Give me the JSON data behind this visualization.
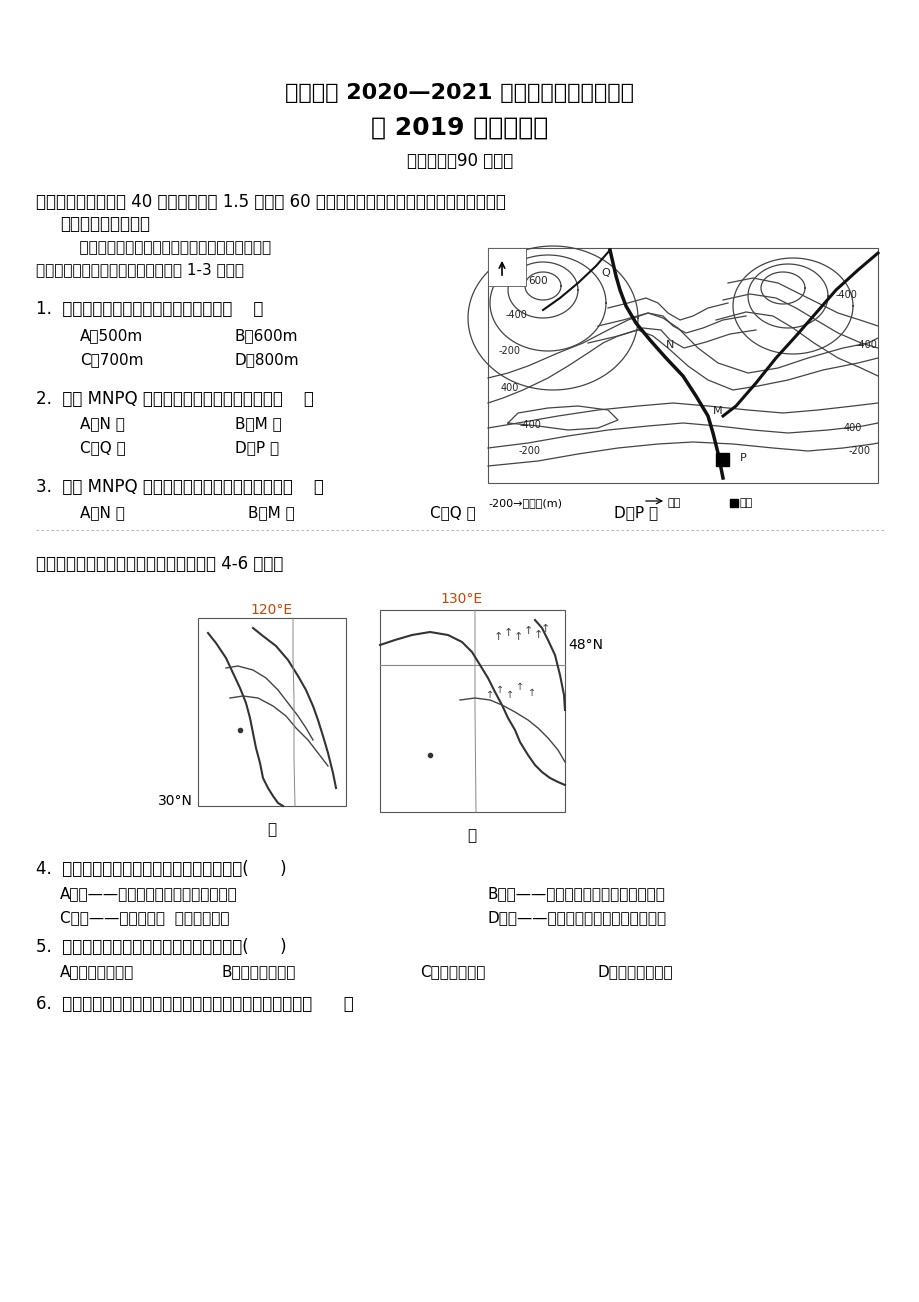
{
  "bg_color": "#ffffff",
  "title1": "南充高中 2020—2021 学年度上学期期中考试",
  "title2": "高 2019 级地理试题",
  "subtitle": "考试时间：90 分钟；",
  "section1": "一、选择题（本题共 40 小题，每小题 1.5 分，共 60 分。在每小题给出的四个选项中，只有一项",
  "section1b": "是符合题目要求的）",
  "intro_text": "    某学校地理兴趣小组开展了一次家乡地理考察活",
  "intro_text2": "动并绘制了等高线地形图。读图完成 1-3 小题。",
  "q1": "1.  图中最高点与最低点相对高差可能是（    ）",
  "q1a": "A．500m",
  "q1b": "B．600m",
  "q1c": "C．700m",
  "q1d": "D．800m",
  "q2": "2.  图中 MNPQ 四处河段中，水流最缓慢的是（    ）",
  "q2a": "A．N 处",
  "q2b": "B．M 处",
  "q2c": "C．Q 处",
  "q2d": "D．P 处",
  "q3": "3.  图中 MNPQ 四处中，最适合建水库大坝的是（    ）",
  "q3a": "A．N 处",
  "q3b": "B．M 处",
  "q3c": "C．Q 处",
  "q3d": "D．P 处",
  "intro2": "甲、乙两图示意我国局部地区。据此完成 4-6 小题。",
  "q4": "4.  甲、乙两区域体现的地理环境特征分别是(      )",
  "q4a": "A．甲——油气资源丰富，重化工业发达",
  "q4b": "B．甲——降水丰富，河流水位变化较大",
  "q4c": "C．乙——纬度较高，  但无冻土分布",
  "q4d": "D．乙——轻工业发达，产品出口量较大",
  "q5": "5.  甲、乙两区域农业熟制不同的主要原因是(      )",
  "q5a": "A．土壤肥力不同",
  "q5b": "B．热量差异较大",
  "q5c": "C．雨热不同期",
  "q5d": "D．地形差异显著",
  "q6": "6.  与甲区域相比，乙区域农业用地机械化程度高主要益于（      ）",
  "map_label_120E": "120°E",
  "map_label_130E": "130°E",
  "map_label_48N": "48°N",
  "map_label_30N": "30°N",
  "map_label_jia": "甲",
  "map_label_yi": "乙",
  "topo_north": "北",
  "topo_legend": "-200→等高线(m)",
  "topo_river": "河流",
  "topo_village": "村庄"
}
